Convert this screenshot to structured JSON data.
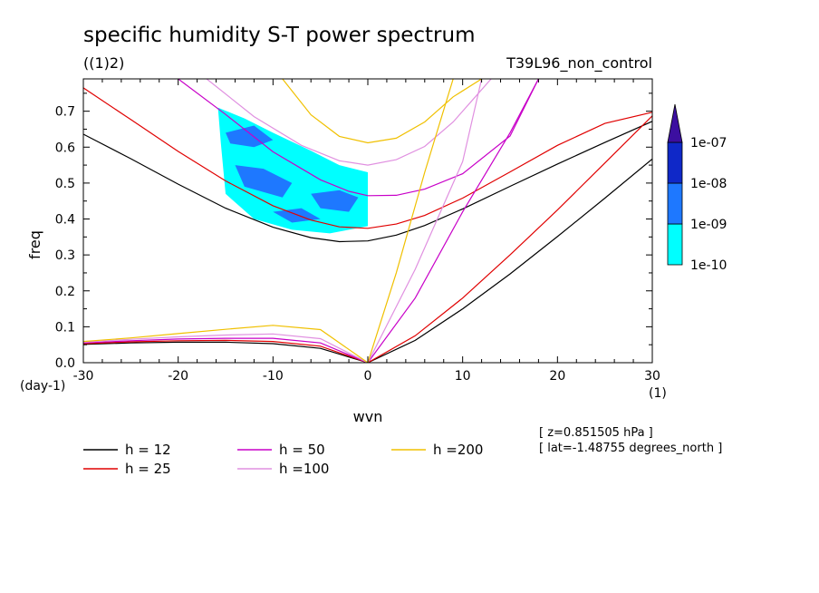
{
  "chart_data": {
    "type": "contour",
    "title": "specific humidity S-T power spectrum",
    "subtitle_left": "((1)2)",
    "subtitle_right": "T39L96_non_control",
    "xlabel": "wvn",
    "ylabel": "freq",
    "x_unit": "(1)",
    "y_unit": "(day-1)",
    "xlim": [
      -30,
      30
    ],
    "ylim": [
      0,
      0.79
    ],
    "x_ticks": [
      -30,
      -20,
      -10,
      0,
      10,
      20,
      30
    ],
    "x_tick_labels": [
      "-30",
      "-20",
      "-10",
      "0",
      "10",
      "20",
      "30"
    ],
    "y_ticks": [
      0,
      0.1,
      0.2,
      0.3,
      0.4,
      0.5,
      0.6,
      0.7
    ],
    "y_tick_labels": [
      "0.0",
      "0.1",
      "0.2",
      "0.3",
      "0.4",
      "0.5",
      "0.6",
      "0.7"
    ],
    "colorbar": {
      "levels": [
        "1e-10",
        "1e-09",
        "1e-08",
        "1e-07"
      ],
      "colors": [
        "#00ffff",
        "#1e78ff",
        "#0f28c8",
        "#3c0fa0"
      ]
    },
    "info_lines": [
      "[ z=0.851505 hPa ]",
      "[ lat=-1.48755 degrees_north ]"
    ],
    "series": [
      {
        "name": "h = 12",
        "color": "#000000",
        "branches": [
          {
            "x": [
              -30,
              -25,
              -20,
              -15,
              -10,
              -6,
              -3,
              0,
              3,
              6,
              10,
              15,
              20,
              25,
              30
            ],
            "y": [
              0.636,
              0.568,
              0.497,
              0.43,
              0.377,
              0.348,
              0.337,
              0.339,
              0.355,
              0.382,
              0.428,
              0.491,
              0.553,
              0.613,
              0.672
            ]
          },
          {
            "x": [
              -30,
              -25,
              -20,
              -15,
              -10,
              -5,
              0
            ],
            "y": [
              0.051,
              0.055,
              0.057,
              0.057,
              0.053,
              0.04,
              0.0
            ]
          },
          {
            "x": [
              0,
              5,
              10,
              15,
              20,
              25,
              30
            ],
            "y": [
              0.0,
              0.062,
              0.15,
              0.247,
              0.351,
              0.458,
              0.567
            ]
          }
        ]
      },
      {
        "name": "h = 25",
        "color": "#e00000",
        "branches": [
          {
            "x": [
              -30,
              -25,
              -20,
              -15,
              -10,
              -6,
              -3,
              0,
              3,
              6,
              10,
              15,
              20,
              25,
              30
            ],
            "y": [
              0.765,
              0.677,
              0.588,
              0.506,
              0.437,
              0.397,
              0.378,
              0.374,
              0.386,
              0.41,
              0.458,
              0.531,
              0.605,
              0.666,
              0.697
            ]
          },
          {
            "x": [
              -30,
              -25,
              -20,
              -15,
              -10,
              -5,
              0
            ],
            "y": [
              0.053,
              0.058,
              0.061,
              0.062,
              0.059,
              0.046,
              0.0
            ]
          },
          {
            "x": [
              0,
              5,
              10,
              15,
              20,
              25,
              30
            ],
            "y": [
              0.0,
              0.075,
              0.18,
              0.3,
              0.425,
              0.556,
              0.687
            ]
          }
        ]
      },
      {
        "name": "h = 50",
        "color": "#c800c8",
        "branches": [
          {
            "x": [
              -20,
              -15,
              -10,
              -5,
              -2,
              0,
              3,
              6,
              10,
              15,
              18
            ],
            "y": [
              0.79,
              0.691,
              0.587,
              0.509,
              0.477,
              0.465,
              0.466,
              0.483,
              0.526,
              0.631,
              0.79
            ]
          },
          {
            "x": [
              -30,
              -25,
              -20,
              -15,
              -10,
              -5,
              0
            ],
            "y": [
              0.055,
              0.061,
              0.066,
              0.068,
              0.068,
              0.055,
              0.0
            ]
          },
          {
            "x": [
              0,
              5,
              10,
              15,
              18
            ],
            "y": [
              0.0,
              0.18,
              0.42,
              0.64,
              0.79
            ]
          }
        ]
      },
      {
        "name": "h =100",
        "color": "#e090e0",
        "branches": [
          {
            "x": [
              -17,
              -12,
              -7,
              -3,
              0,
              3,
              6,
              9,
              11,
              13
            ],
            "y": [
              0.79,
              0.685,
              0.605,
              0.562,
              0.55,
              0.565,
              0.602,
              0.67,
              0.73,
              0.79
            ]
          },
          {
            "x": [
              -30,
              -25,
              -20,
              -15,
              -10,
              -5,
              0
            ],
            "y": [
              0.057,
              0.065,
              0.072,
              0.077,
              0.08,
              0.067,
              0.0
            ]
          },
          {
            "x": [
              0,
              5,
              10,
              12
            ],
            "y": [
              0.0,
              0.26,
              0.56,
              0.79
            ]
          }
        ]
      },
      {
        "name": "h =200",
        "color": "#f0c000",
        "branches": [
          {
            "x": [
              -9,
              -6,
              -3,
              0,
              3,
              6,
              9,
              12
            ],
            "y": [
              0.79,
              0.69,
              0.63,
              0.612,
              0.625,
              0.67,
              0.74,
              0.79
            ]
          },
          {
            "x": [
              -30,
              -25,
              -20,
              -15,
              -10,
              -5,
              0
            ],
            "y": [
              0.059,
              0.069,
              0.081,
              0.093,
              0.104,
              0.092,
              0.0
            ]
          },
          {
            "x": [
              0,
              3,
              6,
              9
            ],
            "y": [
              0.0,
              0.25,
              0.53,
              0.79
            ]
          }
        ]
      }
    ],
    "shaded_regions": [
      {
        "level": "1e-10",
        "x": [
          -15.8,
          -13,
          -10,
          -6,
          -3,
          0,
          0,
          -4,
          -8,
          -12,
          -15,
          -15.5
        ],
        "y": [
          0.71,
          0.68,
          0.64,
          0.59,
          0.55,
          0.53,
          0.38,
          0.36,
          0.37,
          0.4,
          0.47,
          0.61
        ]
      },
      {
        "level": "1e-09",
        "x": [
          -14,
          -11,
          -8,
          -9,
          -13
        ],
        "y": [
          0.55,
          0.54,
          0.5,
          0.46,
          0.49
        ]
      },
      {
        "level": "1e-09",
        "x": [
          -6,
          -3,
          -1,
          -2,
          -5
        ],
        "y": [
          0.47,
          0.48,
          0.46,
          0.42,
          0.43
        ]
      },
      {
        "level": "1e-09",
        "x": [
          -15,
          -12,
          -10,
          -12,
          -14.5
        ],
        "y": [
          0.64,
          0.66,
          0.62,
          0.6,
          0.61
        ]
      },
      {
        "level": "1e-09",
        "x": [
          -10,
          -7,
          -5,
          -8
        ],
        "y": [
          0.42,
          0.43,
          0.4,
          0.39
        ]
      }
    ]
  },
  "legend": {
    "items": [
      {
        "label": "h = 12",
        "color": "#000000"
      },
      {
        "label": "h = 25",
        "color": "#e00000"
      },
      {
        "label": "h = 50",
        "color": "#c800c8"
      },
      {
        "label": "h =100",
        "color": "#e090e0"
      },
      {
        "label": "h =200",
        "color": "#f0c000"
      }
    ]
  }
}
